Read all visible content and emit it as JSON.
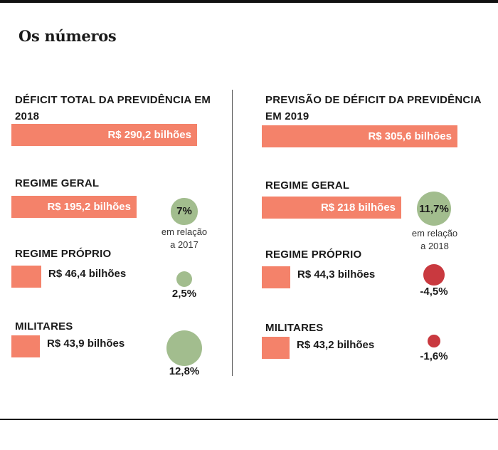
{
  "page_title": "Os números",
  "colors": {
    "bar": "#f4826a",
    "increase": "#a2bd8e",
    "decrease": "#c9393f"
  },
  "chart_data": [
    {
      "type": "bar",
      "title": "DÉFICIT TOTAL DA PREVIDÊNCIA EM 2018",
      "categories": [
        "DÉFICIT TOTAL DA PREVIDÊNCIA EM 2018",
        "REGIME GERAL",
        "REGIME PRÓPRIO",
        "MILITARES"
      ],
      "values": [
        290.2,
        195.2,
        46.4,
        43.9
      ],
      "value_labels": [
        "R$ 290,2 bilhões",
        "R$ 195,2 bilhões",
        "R$ 46,4 bilhões",
        "R$ 43,9 bilhões"
      ],
      "changes": [
        null,
        7.0,
        2.5,
        12.8
      ],
      "change_labels": [
        "",
        "7%",
        "2,5%",
        "12,8%"
      ],
      "change_note": [
        "em relação",
        "a 2017"
      ]
    },
    {
      "type": "bar",
      "title": "PREVISÃO DE DÉFICIT DA PREVIDÊNCIA EM 2019",
      "categories": [
        "PREVISÃO DE DÉFICIT DA PREVIDÊNCIA EM 2019",
        "REGIME GERAL",
        "REGIME PRÓPRIO",
        "MILITARES"
      ],
      "values": [
        305.6,
        218.0,
        44.3,
        43.2
      ],
      "value_labels": [
        "R$ 305,6 bilhões",
        "R$ 218 bilhões",
        "R$ 44,3 bilhões",
        "R$ 43,2 bilhões"
      ],
      "changes": [
        null,
        11.7,
        -4.5,
        -1.6
      ],
      "change_labels": [
        "",
        "11,7%",
        "-4,5%",
        "-1,6%"
      ],
      "change_note": [
        "em relação",
        "a 2018"
      ]
    }
  ]
}
